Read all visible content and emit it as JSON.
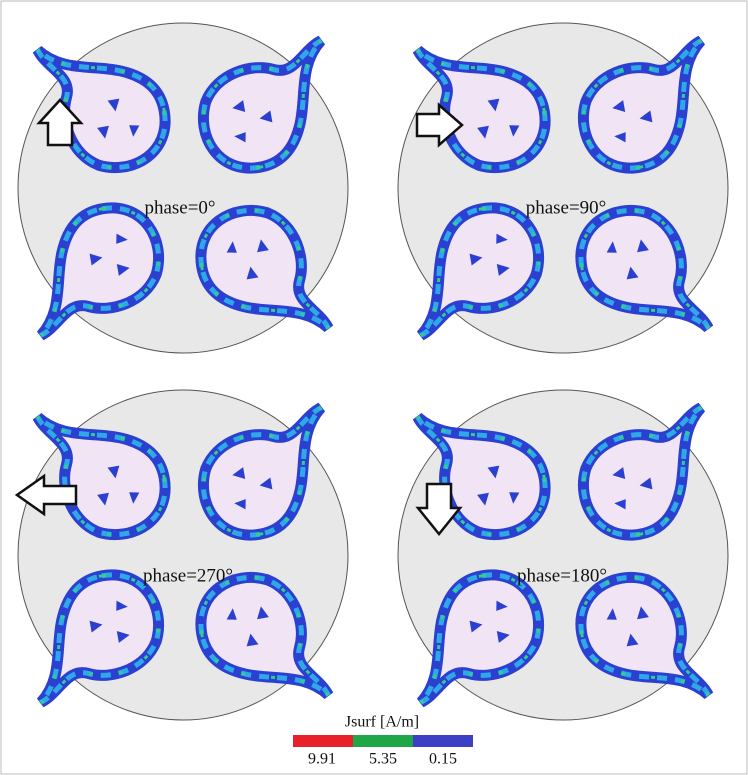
{
  "panels": [
    {
      "label": "phase=0°"
    },
    {
      "label": "phase=90°"
    },
    {
      "label": "phase=270°"
    },
    {
      "label": "phase=180°"
    }
  ],
  "legend": {
    "title": "Jsurf [A/m]",
    "labels": [
      "9.91",
      "5.35",
      "0.15"
    ]
  }
}
